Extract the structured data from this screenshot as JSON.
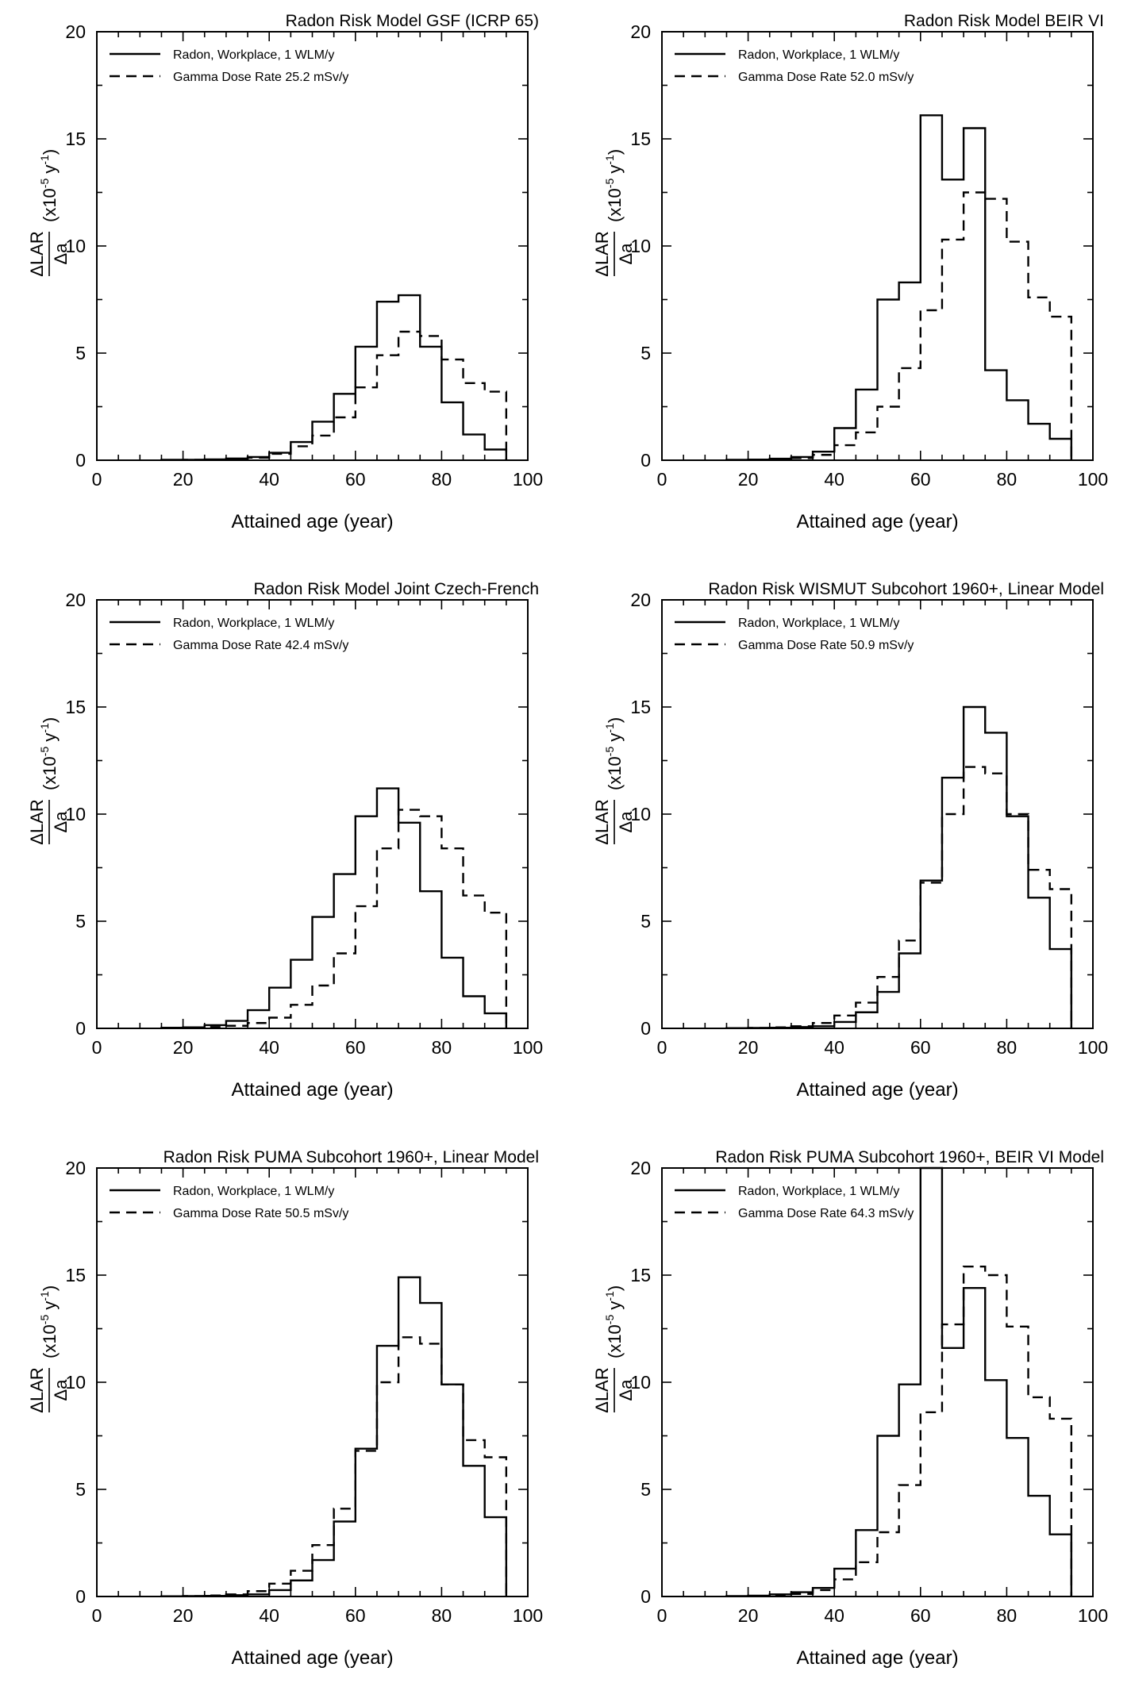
{
  "chart_data": [
    {
      "type": "step",
      "title": "Radon Risk Model GSF (ICRP 65)",
      "xlabel": "Attained age (year)",
      "ylabel": {
        "numerator": "ΔLAR",
        "denominator": "Δa",
        "unit": "(x10",
        "exponent": "-5",
        "unit_mid": " y",
        "exponent2": "-1",
        "unit_end": ")"
      },
      "xlim": [
        0,
        100
      ],
      "ylim": [
        0,
        20
      ],
      "x_ticks": [
        "0",
        "20",
        "40",
        "60",
        "80",
        "100"
      ],
      "y_ticks": [
        "0",
        "5",
        "10",
        "15",
        "20"
      ],
      "bin_edges": [
        15,
        20,
        25,
        30,
        35,
        40,
        45,
        50,
        55,
        60,
        65,
        70,
        75,
        80,
        85,
        90,
        95
      ],
      "legend_position": "top-left",
      "series": [
        {
          "name": "Radon, Workplace, 1 WLM/y",
          "style": "solid",
          "values": [
            0.02,
            0.02,
            0.04,
            0.08,
            0.15,
            0.35,
            0.85,
            1.8,
            3.1,
            5.3,
            7.4,
            7.7,
            5.3,
            2.7,
            1.2,
            0.5
          ]
        },
        {
          "name": "Gamma Dose Rate 25.2 mSv/y",
          "style": "dashed",
          "values": [
            0.01,
            0.02,
            0.03,
            0.06,
            0.12,
            0.3,
            0.65,
            1.15,
            2.0,
            3.4,
            4.9,
            6.0,
            5.8,
            4.7,
            3.6,
            3.2
          ]
        }
      ]
    },
    {
      "type": "step",
      "title": "Radon Risk Model BEIR VI",
      "xlabel": "Attained age (year)",
      "ylabel": {
        "numerator": "ΔLAR",
        "denominator": "Δa",
        "unit": "(x10",
        "exponent": "-5",
        "unit_mid": " y",
        "exponent2": "-1",
        "unit_end": ")"
      },
      "xlim": [
        0,
        100
      ],
      "ylim": [
        0,
        20
      ],
      "x_ticks": [
        "0",
        "20",
        "40",
        "60",
        "80",
        "100"
      ],
      "y_ticks": [
        "0",
        "5",
        "10",
        "15",
        "20"
      ],
      "bin_edges": [
        15,
        20,
        25,
        30,
        35,
        40,
        45,
        50,
        55,
        60,
        65,
        70,
        75,
        80,
        85,
        90,
        95
      ],
      "legend_position": "top-left",
      "series": [
        {
          "name": "Radon, Workplace, 1 WLM/y",
          "style": "solid",
          "values": [
            0.02,
            0.03,
            0.07,
            0.15,
            0.4,
            1.5,
            3.3,
            7.5,
            8.3,
            16.1,
            13.1,
            15.5,
            4.2,
            2.8,
            1.7,
            1.0
          ]
        },
        {
          "name": "Gamma Dose Rate 52.0 mSv/y",
          "style": "dashed",
          "values": [
            0.01,
            0.02,
            0.05,
            0.1,
            0.25,
            0.7,
            1.3,
            2.5,
            4.3,
            7.0,
            10.3,
            12.5,
            12.2,
            10.2,
            7.6,
            6.7
          ]
        }
      ]
    },
    {
      "type": "step",
      "title": "Radon Risk Model Joint Czech-French",
      "xlabel": "Attained age (year)",
      "ylabel": {
        "numerator": "ΔLAR",
        "denominator": "Δa",
        "unit": "(x10",
        "exponent": "-5",
        "unit_mid": " y",
        "exponent2": "-1",
        "unit_end": ")"
      },
      "xlim": [
        0,
        100
      ],
      "ylim": [
        0,
        20
      ],
      "x_ticks": [
        "0",
        "20",
        "40",
        "60",
        "80",
        "100"
      ],
      "y_ticks": [
        "0",
        "5",
        "10",
        "15",
        "20"
      ],
      "bin_edges": [
        15,
        20,
        25,
        30,
        35,
        40,
        45,
        50,
        55,
        60,
        65,
        70,
        75,
        80,
        85,
        90,
        95
      ],
      "legend_position": "top-left",
      "series": [
        {
          "name": "Radon, Workplace, 1 WLM/y",
          "style": "solid",
          "values": [
            0.03,
            0.05,
            0.15,
            0.35,
            0.85,
            1.9,
            3.2,
            5.2,
            7.2,
            9.9,
            11.2,
            9.6,
            6.4,
            3.3,
            1.5,
            0.7
          ]
        },
        {
          "name": "Gamma Dose Rate 42.4 mSv/y",
          "style": "dashed",
          "values": [
            0.01,
            0.03,
            0.06,
            0.12,
            0.25,
            0.5,
            1.1,
            2.0,
            3.5,
            5.7,
            8.4,
            10.2,
            9.9,
            8.4,
            6.2,
            5.4
          ]
        }
      ]
    },
    {
      "type": "step",
      "title": "Radon Risk WISMUT Subcohort 1960+, Linear Model",
      "xlabel": "Attained age (year)",
      "ylabel": {
        "numerator": "ΔLAR",
        "denominator": "Δa",
        "unit": "(x10",
        "exponent": "-5",
        "unit_mid": " y",
        "exponent2": "-1",
        "unit_end": ")"
      },
      "xlim": [
        0,
        100
      ],
      "ylim": [
        0,
        20
      ],
      "x_ticks": [
        "0",
        "20",
        "40",
        "60",
        "80",
        "100"
      ],
      "y_ticks": [
        "0",
        "5",
        "10",
        "15",
        "20"
      ],
      "bin_edges": [
        15,
        20,
        25,
        30,
        35,
        40,
        45,
        50,
        55,
        60,
        65,
        70,
        75,
        80,
        85,
        90,
        95
      ],
      "legend_position": "top-left",
      "series": [
        {
          "name": "Radon, Workplace, 1 WLM/y",
          "style": "solid",
          "values": [
            0.01,
            0.02,
            0.03,
            0.06,
            0.1,
            0.3,
            0.75,
            1.7,
            3.5,
            6.9,
            11.7,
            15.0,
            13.8,
            9.9,
            6.1,
            3.7
          ]
        },
        {
          "name": "Gamma Dose Rate 50.9 mSv/y",
          "style": "dashed",
          "values": [
            0.01,
            0.02,
            0.05,
            0.1,
            0.25,
            0.6,
            1.2,
            2.4,
            4.1,
            6.8,
            10.0,
            12.2,
            11.9,
            10.0,
            7.4,
            6.5
          ]
        }
      ]
    },
    {
      "type": "step",
      "title": "Radon Risk PUMA Subcohort 1960+, Linear Model",
      "xlabel": "Attained age (year)",
      "ylabel": {
        "numerator": "ΔLAR",
        "denominator": "Δa",
        "unit": "(x10",
        "exponent": "-5",
        "unit_mid": " y",
        "exponent2": "-1",
        "unit_end": ")"
      },
      "xlim": [
        0,
        100
      ],
      "ylim": [
        0,
        20
      ],
      "x_ticks": [
        "0",
        "20",
        "40",
        "60",
        "80",
        "100"
      ],
      "y_ticks": [
        "0",
        "5",
        "10",
        "15",
        "20"
      ],
      "bin_edges": [
        15,
        20,
        25,
        30,
        35,
        40,
        45,
        50,
        55,
        60,
        65,
        70,
        75,
        80,
        85,
        90,
        95
      ],
      "legend_position": "top-left",
      "series": [
        {
          "name": "Radon, Workplace, 1 WLM/y",
          "style": "solid",
          "values": [
            0.01,
            0.02,
            0.03,
            0.06,
            0.1,
            0.3,
            0.75,
            1.7,
            3.5,
            6.9,
            11.7,
            14.9,
            13.7,
            9.9,
            6.1,
            3.7
          ]
        },
        {
          "name": "Gamma Dose Rate 50.5 mSv/y",
          "style": "dashed",
          "values": [
            0.01,
            0.02,
            0.05,
            0.1,
            0.25,
            0.6,
            1.2,
            2.4,
            4.1,
            6.8,
            10.0,
            12.1,
            11.8,
            9.9,
            7.3,
            6.5
          ]
        }
      ]
    },
    {
      "type": "step",
      "title": "Radon Risk PUMA Subcohort 1960+, BEIR VI Model",
      "xlabel": "Attained age (year)",
      "ylabel": {
        "numerator": "ΔLAR",
        "denominator": "Δa",
        "unit": "(x10",
        "exponent": "-5",
        "unit_mid": " y",
        "exponent2": "-1",
        "unit_end": ")"
      },
      "xlim": [
        0,
        100
      ],
      "ylim": [
        0,
        20
      ],
      "x_ticks": [
        "0",
        "20",
        "40",
        "60",
        "80",
        "100"
      ],
      "y_ticks": [
        "0",
        "5",
        "10",
        "15",
        "20"
      ],
      "bin_edges": [
        15,
        20,
        25,
        30,
        35,
        40,
        45,
        50,
        55,
        60,
        65,
        70,
        75,
        80,
        85,
        90,
        95
      ],
      "legend_position": "top-left",
      "series": [
        {
          "name": "Radon, Workplace, 1 WLM/y",
          "style": "solid",
          "values": [
            0.02,
            0.04,
            0.1,
            0.2,
            0.4,
            1.3,
            3.1,
            7.5,
            9.9,
            20.0,
            11.6,
            14.4,
            10.1,
            7.4,
            4.7,
            2.9
          ]
        },
        {
          "name": "Gamma Dose Rate 64.3 mSv/y",
          "style": "dashed",
          "values": [
            0.01,
            0.03,
            0.06,
            0.12,
            0.3,
            0.8,
            1.6,
            3.0,
            5.2,
            8.6,
            12.7,
            15.4,
            15.0,
            12.6,
            9.3,
            8.3
          ]
        }
      ]
    }
  ]
}
